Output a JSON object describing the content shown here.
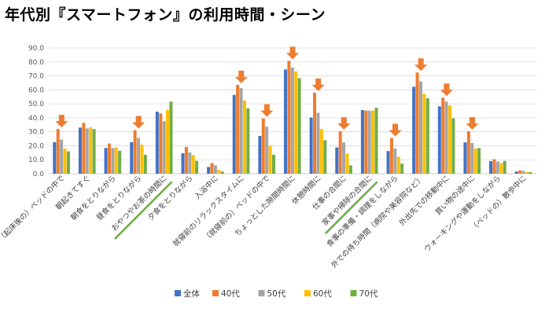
{
  "chart_data": {
    "type": "bar",
    "title": "年代別『スマートフォン』の利用時間・シーン",
    "xlabel": "",
    "ylabel": "",
    "ylim": [
      0,
      90
    ],
    "yticks": [
      "0.0",
      "10.0",
      "20.0",
      "30.0",
      "40.0",
      "50.0",
      "60.0",
      "70.0",
      "80.0",
      "90.0"
    ],
    "categories": [
      "（起床後の）ベッドの中で",
      "朝起きてすぐ",
      "朝食をとりながら",
      "昼食をとりながら",
      "おやつやお茶の時間に",
      "夕食をとりながら",
      "入浴中に",
      "就寝前のリラックスタイムに",
      "（就寝前の）ベッドの中で",
      "ちょっとした隙間時間に",
      "休憩時間に",
      "仕事の合間に",
      "家事や掃除の合間に",
      "食事の準備・調理をしながら",
      "外での待ち時間（病院や美容院など）",
      "外出先での移動中に",
      "買い物の途中に",
      "ウォーキングや運動をしながら",
      "（ベッドの）散歩中に"
    ],
    "series": [
      {
        "name": "全体",
        "color": "#4472c4",
        "values": [
          22.6,
          33.0,
          18.4,
          22.6,
          44.4,
          14.6,
          4.8,
          56.4,
          27.0,
          74.6,
          40.2,
          18.8,
          45.6,
          16.2,
          62.2,
          48.2,
          22.4,
          9.0,
          1.6
        ]
      },
      {
        "name": "40代",
        "color": "#ed7d31",
        "values": [
          32.0,
          36.4,
          21.6,
          31.2,
          43.2,
          19.2,
          7.6,
          63.6,
          39.6,
          80.8,
          58.0,
          30.4,
          45.2,
          25.6,
          72.4,
          54.4,
          30.4,
          10.4,
          2.4
        ]
      },
      {
        "name": "50代",
        "color": "#a5a5a5",
        "values": [
          24.4,
          32.4,
          18.4,
          25.6,
          37.6,
          15.2,
          6.0,
          61.2,
          33.6,
          76.0,
          43.6,
          22.4,
          45.2,
          18.0,
          66.0,
          51.6,
          22.0,
          8.8,
          2.0
        ]
      },
      {
        "name": "60代",
        "color": "#ffc000",
        "values": [
          18.0,
          33.2,
          18.8,
          20.8,
          45.6,
          13.2,
          2.8,
          52.4,
          20.0,
          73.2,
          32.0,
          14.4,
          45.2,
          12.0,
          57.2,
          48.8,
          18.0,
          7.6,
          1.2
        ]
      },
      {
        "name": "70代",
        "color": "#70ad47",
        "values": [
          16.0,
          32.0,
          16.4,
          13.6,
          51.6,
          9.2,
          1.6,
          46.8,
          13.6,
          68.4,
          24.0,
          6.0,
          47.2,
          7.2,
          54.0,
          39.6,
          18.4,
          9.2,
          1.2
        ]
      }
    ],
    "highlighted_categories": [
      0,
      3,
      7,
      8,
      9,
      10,
      11,
      13,
      14,
      15,
      16
    ],
    "underlined_categories": [
      4,
      12
    ],
    "legend_position": "bottom",
    "grid": true
  }
}
